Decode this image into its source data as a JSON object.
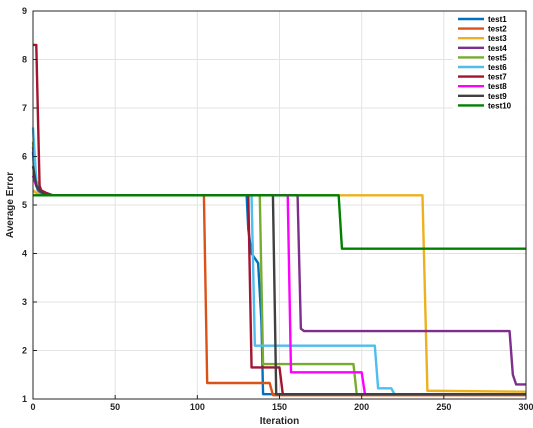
{
  "chart_data": {
    "type": "line",
    "title": "",
    "xlabel": "Iteration",
    "ylabel": "Average Error",
    "xlim": [
      0,
      300
    ],
    "ylim": [
      1,
      9
    ],
    "xticks": [
      0,
      50,
      100,
      150,
      200,
      250,
      300
    ],
    "yticks": [
      1,
      2,
      3,
      4,
      5,
      6,
      7,
      8,
      9
    ],
    "grid": true,
    "legend_position": "top-right",
    "series": [
      {
        "name": "test1",
        "color": "#0072BD",
        "x": [
          0,
          1,
          2,
          3,
          5,
          8,
          15,
          130,
          131,
          133,
          135,
          137,
          139,
          140,
          143,
          300
        ],
        "y": [
          6.1,
          5.5,
          5.4,
          5.3,
          5.25,
          5.2,
          5.2,
          5.2,
          4.5,
          4.0,
          3.9,
          3.8,
          2.6,
          1.1,
          1.1,
          1.1
        ]
      },
      {
        "name": "test2",
        "color": "#D95319",
        "x": [
          0,
          2,
          5,
          10,
          104,
          106,
          144,
          146,
          300
        ],
        "y": [
          5.3,
          5.25,
          5.2,
          5.2,
          5.2,
          1.33,
          1.33,
          1.08,
          1.08
        ]
      },
      {
        "name": "test3",
        "color": "#EDB120",
        "x": [
          0,
          2,
          5,
          10,
          237,
          240,
          300
        ],
        "y": [
          5.3,
          5.25,
          5.2,
          5.2,
          5.2,
          1.17,
          1.15
        ]
      },
      {
        "name": "test4",
        "color": "#7E2F8E",
        "x": [
          0,
          2,
          4,
          8,
          161,
          163,
          165,
          290,
          292,
          294,
          300
        ],
        "y": [
          6.2,
          5.4,
          5.3,
          5.2,
          5.2,
          2.45,
          2.4,
          2.4,
          1.5,
          1.3,
          1.3
        ]
      },
      {
        "name": "test5",
        "color": "#77AC30",
        "x": [
          0,
          2,
          5,
          10,
          138,
          140,
          195,
          197,
          300
        ],
        "y": [
          6.3,
          5.5,
          5.3,
          5.2,
          5.2,
          1.72,
          1.72,
          1.1,
          1.1
        ]
      },
      {
        "name": "test6",
        "color": "#4DBEEE",
        "x": [
          0,
          2,
          4,
          8,
          133,
          135,
          208,
          210,
          218,
          220,
          300
        ],
        "y": [
          6.6,
          5.5,
          5.3,
          5.2,
          5.2,
          2.1,
          2.1,
          1.22,
          1.22,
          1.1,
          1.1
        ]
      },
      {
        "name": "test7",
        "color": "#A2142F",
        "x": [
          0,
          2,
          4,
          5,
          8,
          12,
          131,
          133,
          150,
          152,
          164,
          300
        ],
        "y": [
          8.3,
          8.3,
          5.4,
          5.3,
          5.25,
          5.2,
          5.2,
          1.65,
          1.65,
          1.1,
          1.1,
          1.1
        ]
      },
      {
        "name": "test8",
        "color": "#FF00FF",
        "x": [
          0,
          2,
          4,
          8,
          155,
          157,
          200,
          202,
          300
        ],
        "y": [
          5.6,
          5.4,
          5.3,
          5.2,
          5.2,
          1.55,
          1.55,
          1.1,
          1.1
        ]
      },
      {
        "name": "test9",
        "color": "#404040",
        "x": [
          0,
          2,
          4,
          8,
          146,
          148,
          300
        ],
        "y": [
          5.8,
          5.4,
          5.3,
          5.2,
          5.2,
          1.1,
          1.1
        ]
      },
      {
        "name": "test10",
        "color": "#008000",
        "x": [
          0,
          5,
          10,
          186,
          188,
          300
        ],
        "y": [
          5.2,
          5.2,
          5.2,
          5.2,
          4.1,
          4.1
        ]
      }
    ]
  }
}
